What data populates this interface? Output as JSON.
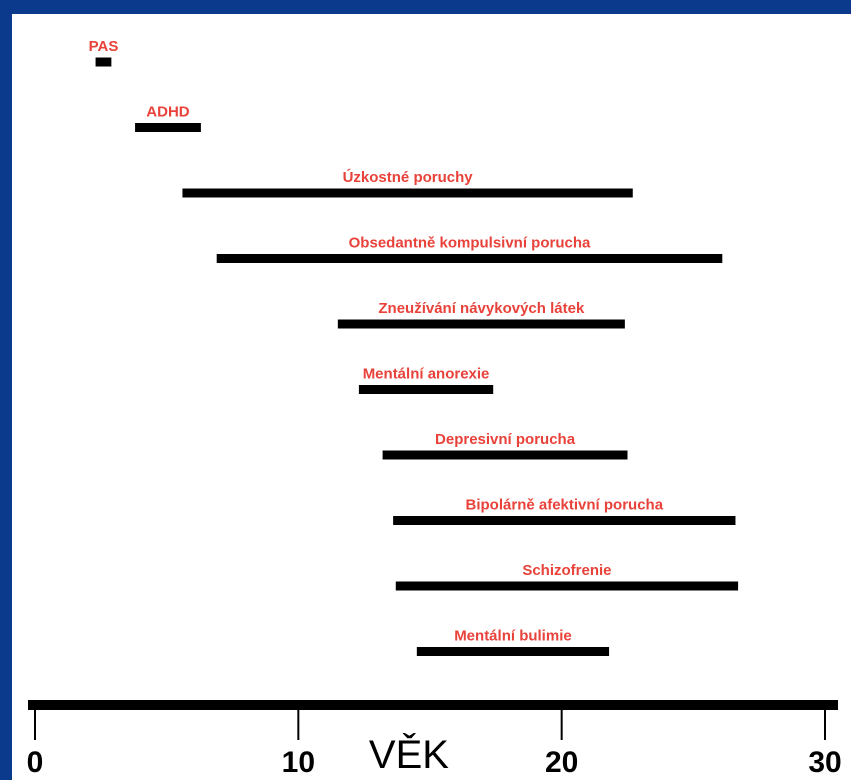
{
  "chart_data": {
    "type": "bar",
    "orientation": "horizontal-range",
    "xlabel": "VĚK",
    "xlim": [
      0,
      30
    ],
    "xticks": [
      0,
      10,
      20,
      30
    ],
    "grid": false,
    "colors": {
      "label": "#e8423a",
      "bar": "#000000",
      "frame": "#0b3a8c"
    },
    "ranges": [
      {
        "label": "PAS",
        "start": 2.3,
        "end": 2.9
      },
      {
        "label": "ADHD",
        "start": 3.8,
        "end": 6.3
      },
      {
        "label": "Úzkostné poruchy",
        "start": 5.6,
        "end": 22.7
      },
      {
        "label": "Obsedantně kompulsivní porucha",
        "start": 6.9,
        "end": 26.1
      },
      {
        "label": "Zneužívání návykových látek",
        "start": 11.5,
        "end": 22.4
      },
      {
        "label": "Mentální anorexie",
        "start": 12.3,
        "end": 17.4
      },
      {
        "label": "Depresivní porucha",
        "start": 13.2,
        "end": 22.5
      },
      {
        "label": "Bipolárně afektivní porucha",
        "start": 13.6,
        "end": 26.6
      },
      {
        "label": "Schizofrenie",
        "start": 13.7,
        "end": 26.7
      },
      {
        "label": "Mentální bulimie",
        "start": 14.5,
        "end": 21.8
      }
    ]
  }
}
